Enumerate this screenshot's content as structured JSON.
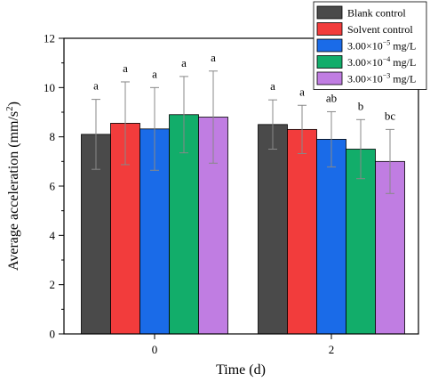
{
  "chart_data": {
    "type": "bar",
    "xlabel": "Time (d)",
    "ylabel_main": "Average acceleration (mm/s",
    "ylabel_sup": "2",
    "ylabel_close": ")",
    "ylim": [
      0,
      12
    ],
    "yticks": [
      0,
      2,
      4,
      6,
      8,
      10,
      12
    ],
    "categories": [
      "0",
      "2"
    ],
    "grid": false,
    "legend_position": "top-right",
    "series": [
      {
        "name": "Blank control",
        "name_base": "Blank control",
        "name_sup": "",
        "name_suffix": "",
        "color": "#4a4a4a",
        "values": [
          8.1,
          8.5
        ],
        "errors": [
          1.42,
          1.0
        ],
        "labels": [
          "a",
          "a"
        ]
      },
      {
        "name": "Solvent control",
        "name_base": "Solvent control",
        "name_sup": "",
        "name_suffix": "",
        "color": "#f23c3c",
        "values": [
          8.55,
          8.3
        ],
        "errors": [
          1.68,
          0.98
        ],
        "labels": [
          "a",
          "a"
        ]
      },
      {
        "name": "3.00×10⁻⁵ mg/L",
        "name_base": "3.00×10",
        "name_sup": "−5",
        "name_suffix": " mg/L",
        "color": "#1a6be8",
        "values": [
          8.32,
          7.9
        ],
        "errors": [
          1.68,
          1.12
        ],
        "labels": [
          "a",
          "ab"
        ]
      },
      {
        "name": "3.00×10⁻⁴ mg/L",
        "name_base": "3.00×10",
        "name_sup": "−4",
        "name_suffix": " mg/L",
        "color": "#12ad6a",
        "values": [
          8.9,
          7.5
        ],
        "errors": [
          1.55,
          1.2
        ],
        "labels": [
          "a",
          "b"
        ]
      },
      {
        "name": "3.00×10⁻³ mg/L",
        "name_base": "3.00×10",
        "name_sup": "−3",
        "name_suffix": " mg/L",
        "color": "#c07de2",
        "values": [
          8.8,
          7.0
        ],
        "errors": [
          1.87,
          1.3
        ],
        "labels": [
          "a",
          "bc"
        ]
      }
    ]
  }
}
